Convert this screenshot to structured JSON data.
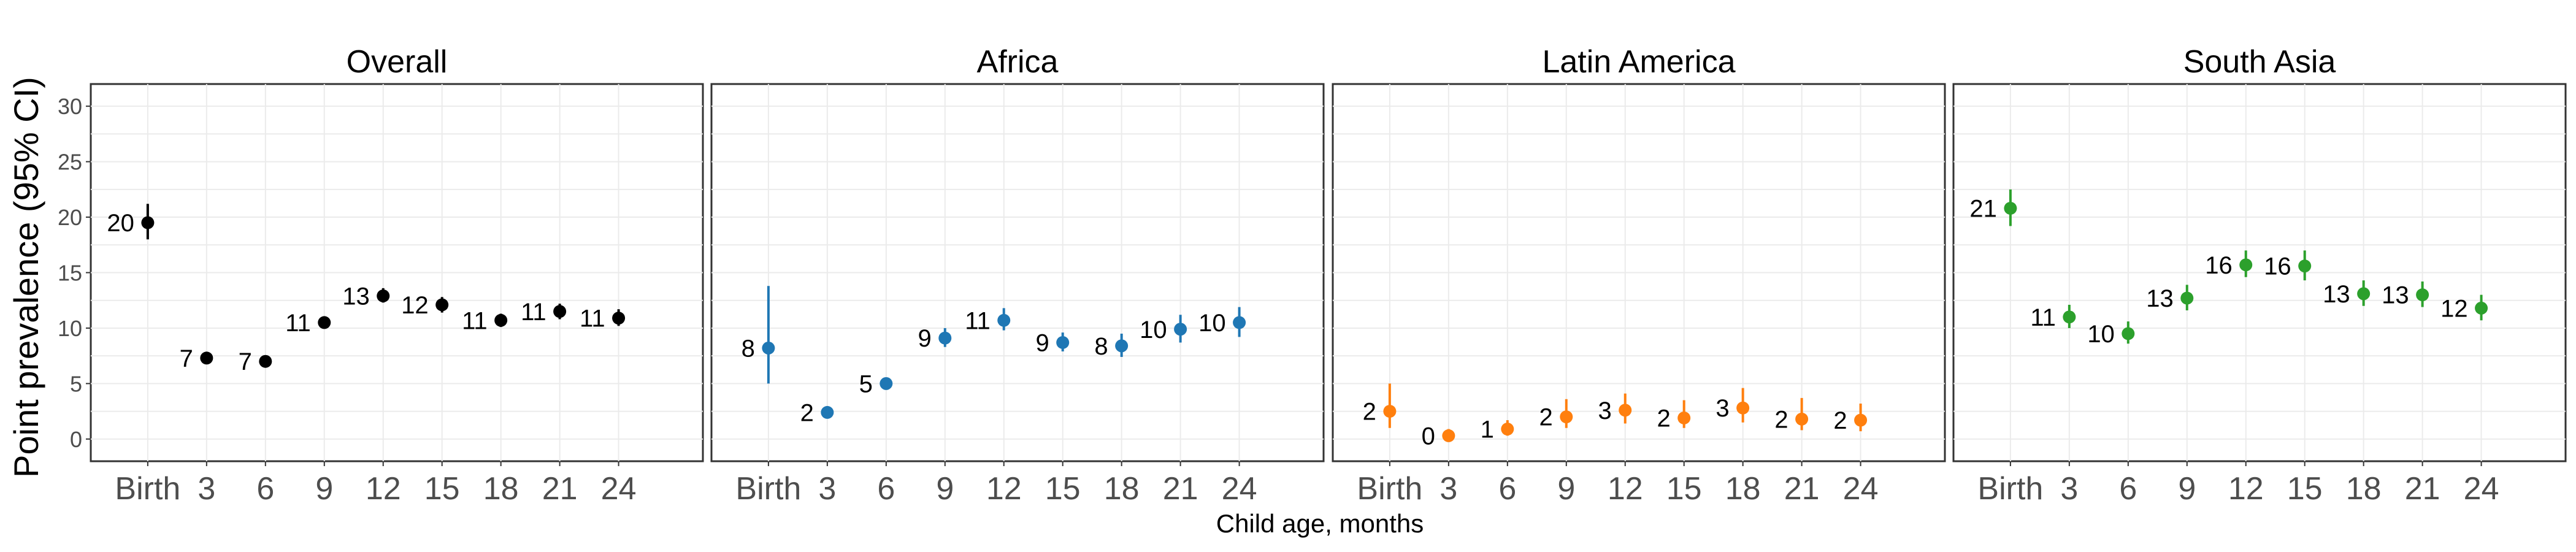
{
  "chart_data": {
    "type": "scatter",
    "ylabel": "Point prevalence (95% CI)",
    "xlabel": "Child age, months",
    "categories": [
      "Birth",
      "3",
      "6",
      "9",
      "12",
      "15",
      "18",
      "21",
      "24"
    ],
    "ylim": [
      -2,
      32
    ],
    "yticks": [
      0,
      5,
      10,
      15,
      20,
      25,
      30
    ],
    "grid": true,
    "legend": "none",
    "facets": [
      {
        "title": "Overall",
        "color": "#000000",
        "points": [
          {
            "x": "Birth",
            "y": 19.5,
            "lo": 18.0,
            "hi": 21.2,
            "label": "20"
          },
          {
            "x": "3",
            "y": 7.3,
            "lo": 6.9,
            "hi": 7.7,
            "label": "7"
          },
          {
            "x": "6",
            "y": 7.0,
            "lo": 6.6,
            "hi": 7.4,
            "label": "7"
          },
          {
            "x": "9",
            "y": 10.5,
            "lo": 10.0,
            "hi": 11.0,
            "label": "11"
          },
          {
            "x": "12",
            "y": 12.9,
            "lo": 12.3,
            "hi": 13.6,
            "label": "13"
          },
          {
            "x": "15",
            "y": 12.1,
            "lo": 11.4,
            "hi": 12.8,
            "label": "12"
          },
          {
            "x": "18",
            "y": 10.7,
            "lo": 10.1,
            "hi": 11.3,
            "label": "11"
          },
          {
            "x": "21",
            "y": 11.5,
            "lo": 10.8,
            "hi": 12.2,
            "label": "11"
          },
          {
            "x": "24",
            "y": 10.9,
            "lo": 10.2,
            "hi": 11.7,
            "label": "11"
          }
        ]
      },
      {
        "title": "Africa",
        "color": "#1f77b4",
        "points": [
          {
            "x": "Birth",
            "y": 8.2,
            "lo": 5.0,
            "hi": 13.8,
            "label": "8"
          },
          {
            "x": "3",
            "y": 2.4,
            "lo": 2.0,
            "hi": 2.8,
            "label": "2"
          },
          {
            "x": "6",
            "y": 5.0,
            "lo": 4.5,
            "hi": 5.5,
            "label": "5"
          },
          {
            "x": "9",
            "y": 9.1,
            "lo": 8.3,
            "hi": 10.0,
            "label": "9"
          },
          {
            "x": "12",
            "y": 10.7,
            "lo": 9.8,
            "hi": 11.8,
            "label": "11"
          },
          {
            "x": "15",
            "y": 8.7,
            "lo": 7.9,
            "hi": 9.6,
            "label": "9"
          },
          {
            "x": "18",
            "y": 8.4,
            "lo": 7.4,
            "hi": 9.5,
            "label": "8"
          },
          {
            "x": "21",
            "y": 9.9,
            "lo": 8.7,
            "hi": 11.2,
            "label": "10"
          },
          {
            "x": "24",
            "y": 10.5,
            "lo": 9.2,
            "hi": 11.9,
            "label": "10"
          }
        ]
      },
      {
        "title": "Latin America",
        "color": "#ff7f0e",
        "points": [
          {
            "x": "Birth",
            "y": 2.5,
            "lo": 1.0,
            "hi": 5.0,
            "label": "2"
          },
          {
            "x": "3",
            "y": 0.3,
            "lo": 0.0,
            "hi": 0.9,
            "label": "0"
          },
          {
            "x": "6",
            "y": 0.9,
            "lo": 0.3,
            "hi": 1.7,
            "label": "1"
          },
          {
            "x": "9",
            "y": 2.0,
            "lo": 1.0,
            "hi": 3.6,
            "label": "2"
          },
          {
            "x": "12",
            "y": 2.6,
            "lo": 1.4,
            "hi": 4.1,
            "label": "3"
          },
          {
            "x": "15",
            "y": 1.9,
            "lo": 1.0,
            "hi": 3.5,
            "label": "2"
          },
          {
            "x": "18",
            "y": 2.8,
            "lo": 1.5,
            "hi": 4.6,
            "label": "3"
          },
          {
            "x": "21",
            "y": 1.8,
            "lo": 0.8,
            "hi": 3.7,
            "label": "2"
          },
          {
            "x": "24",
            "y": 1.7,
            "lo": 0.7,
            "hi": 3.2,
            "label": "2"
          }
        ]
      },
      {
        "title": "South Asia",
        "color": "#2ca02c",
        "points": [
          {
            "x": "Birth",
            "y": 20.8,
            "lo": 19.2,
            "hi": 22.5,
            "label": "21"
          },
          {
            "x": "3",
            "y": 11.0,
            "lo": 10.0,
            "hi": 12.1,
            "label": "11"
          },
          {
            "x": "6",
            "y": 9.5,
            "lo": 8.6,
            "hi": 10.6,
            "label": "10"
          },
          {
            "x": "9",
            "y": 12.7,
            "lo": 11.6,
            "hi": 13.9,
            "label": "13"
          },
          {
            "x": "12",
            "y": 15.7,
            "lo": 14.6,
            "hi": 17.0,
            "label": "16"
          },
          {
            "x": "15",
            "y": 15.6,
            "lo": 14.3,
            "hi": 17.0,
            "label": "16"
          },
          {
            "x": "18",
            "y": 13.1,
            "lo": 12.0,
            "hi": 14.3,
            "label": "13"
          },
          {
            "x": "21",
            "y": 13.0,
            "lo": 11.9,
            "hi": 14.2,
            "label": "13"
          },
          {
            "x": "24",
            "y": 11.8,
            "lo": 10.7,
            "hi": 13.0,
            "label": "12"
          }
        ]
      }
    ]
  }
}
